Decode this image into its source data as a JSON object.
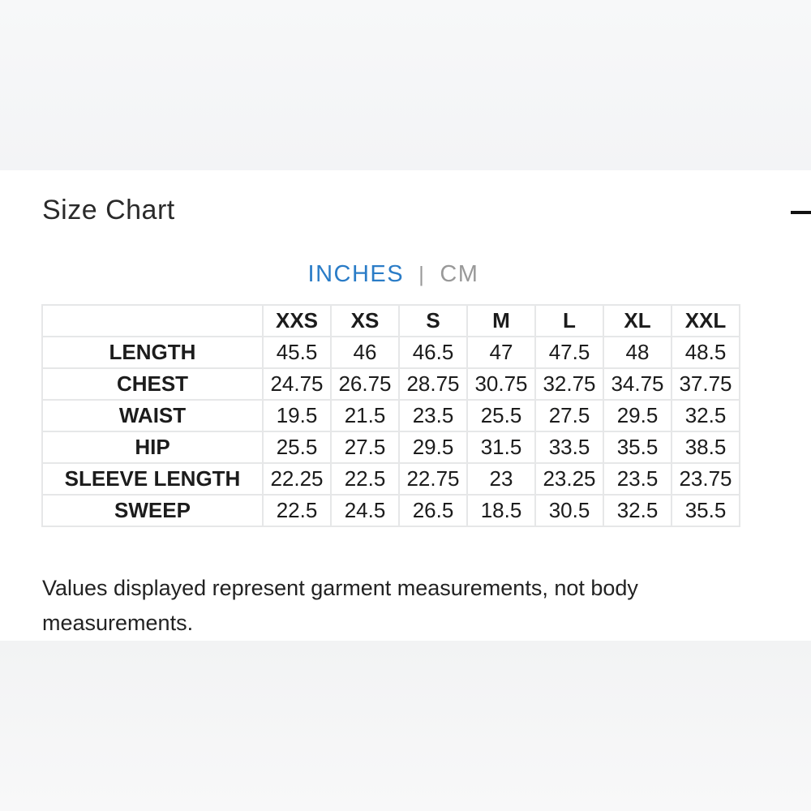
{
  "title": "Size Chart",
  "units": {
    "active": "INCHES",
    "separator": "|",
    "inactive": "CM"
  },
  "colors": {
    "active_unit": "#2a7cc7",
    "inactive_unit": "#999999",
    "border": "#e6e7e8"
  },
  "table": {
    "sizes": [
      "XXS",
      "XS",
      "S",
      "M",
      "L",
      "XL",
      "XXL"
    ],
    "rows": [
      {
        "label": "LENGTH",
        "values": [
          "45.5",
          "46",
          "46.5",
          "47",
          "47.5",
          "48",
          "48.5"
        ]
      },
      {
        "label": "CHEST",
        "values": [
          "24.75",
          "26.75",
          "28.75",
          "30.75",
          "32.75",
          "34.75",
          "37.75"
        ]
      },
      {
        "label": "WAIST",
        "values": [
          "19.5",
          "21.5",
          "23.5",
          "25.5",
          "27.5",
          "29.5",
          "32.5"
        ]
      },
      {
        "label": "HIP",
        "values": [
          "25.5",
          "27.5",
          "29.5",
          "31.5",
          "33.5",
          "35.5",
          "38.5"
        ]
      },
      {
        "label": "SLEEVE LENGTH",
        "values": [
          "22.25",
          "22.5",
          "22.75",
          "23",
          "23.25",
          "23.5",
          "23.75"
        ]
      },
      {
        "label": "SWEEP",
        "values": [
          "22.5",
          "24.5",
          "26.5",
          "18.5",
          "30.5",
          "32.5",
          "35.5"
        ]
      }
    ]
  },
  "note": "Values displayed represent garment measurements, not body measurements.",
  "icons": {
    "collapse": "minus-icon"
  }
}
